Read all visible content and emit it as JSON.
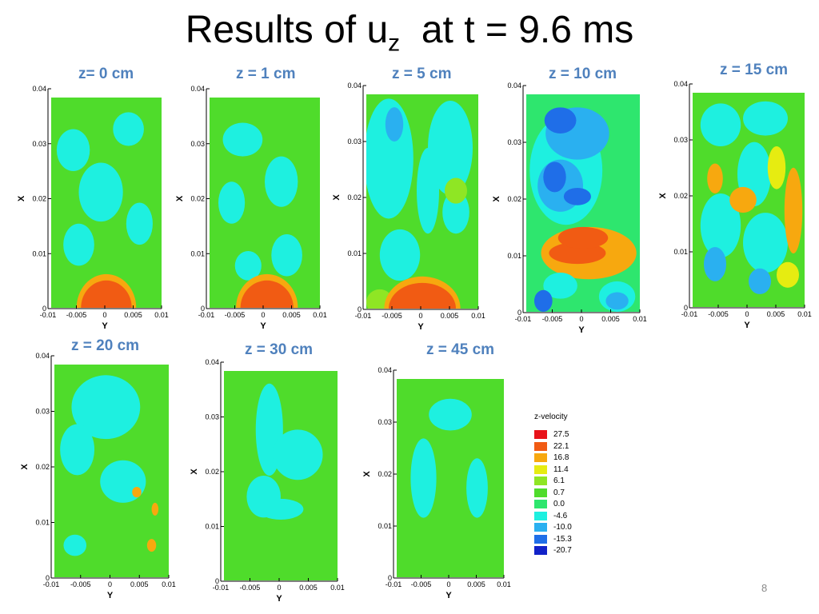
{
  "slide": {
    "title_main": "Results of u",
    "title_sub": "z",
    "title_rest": "  at t = 9.6 ms",
    "page_number": "8"
  },
  "axes": {
    "xlabel": "Y",
    "ylabel": "X",
    "xticks": [
      "-0.01",
      "-0.005",
      "0",
      "0.005",
      "0.01"
    ],
    "yticks": [
      "0",
      "0.01",
      "0.02",
      "0.03",
      "0.04"
    ]
  },
  "legend": {
    "title": "z-velocity",
    "levels": [
      {
        "label": "27.5",
        "color": "#e8131a"
      },
      {
        "label": "22.1",
        "color": "#f15b13"
      },
      {
        "label": "16.8",
        "color": "#f7a80f"
      },
      {
        "label": "11.4",
        "color": "#e6ec11"
      },
      {
        "label": "6.1",
        "color": "#8fe624"
      },
      {
        "label": "0.7",
        "color": "#4fdc2b"
      },
      {
        "label": "0.0",
        "color": "#2ee66e"
      },
      {
        "label": "-4.6",
        "color": "#1ef0e0"
      },
      {
        "label": "-10.0",
        "color": "#2ab0f0"
      },
      {
        "label": "-15.3",
        "color": "#1f6ee8"
      },
      {
        "label": "-20.7",
        "color": "#1222c8"
      }
    ]
  },
  "chart_data": [
    {
      "type": "heatmap",
      "title": "z= 0 cm",
      "xlabel": "Y",
      "ylabel": "X",
      "xlim": [
        -0.01,
        0.01
      ],
      "ylim": [
        0,
        0.04
      ]
    },
    {
      "type": "heatmap",
      "title": "z = 1 cm",
      "xlabel": "Y",
      "ylabel": "X",
      "xlim": [
        -0.01,
        0.01
      ],
      "ylim": [
        0,
        0.04
      ]
    },
    {
      "type": "heatmap",
      "title": "z = 5 cm",
      "xlabel": "Y",
      "ylabel": "X",
      "xlim": [
        -0.01,
        0.01
      ],
      "ylim": [
        0,
        0.04
      ]
    },
    {
      "type": "heatmap",
      "title": "z = 10 cm",
      "xlabel": "Y",
      "ylabel": "X",
      "xlim": [
        -0.01,
        0.01
      ],
      "ylim": [
        0,
        0.04
      ]
    },
    {
      "type": "heatmap",
      "title": "z = 15 cm",
      "xlabel": "Y",
      "ylabel": "X",
      "xlim": [
        -0.01,
        0.01
      ],
      "ylim": [
        0,
        0.04
      ]
    },
    {
      "type": "heatmap",
      "title": "z = 20 cm",
      "xlabel": "Y",
      "ylabel": "X",
      "xlim": [
        -0.01,
        0.01
      ],
      "ylim": [
        0,
        0.04
      ]
    },
    {
      "type": "heatmap",
      "title": "z = 30 cm",
      "xlabel": "Y",
      "ylabel": "X",
      "xlim": [
        -0.01,
        0.01
      ],
      "ylim": [
        0,
        0.04
      ]
    },
    {
      "type": "heatmap",
      "title": "z = 45 cm",
      "xlabel": "Y",
      "ylabel": "X",
      "xlim": [
        -0.01,
        0.01
      ],
      "ylim": [
        0,
        0.04
      ]
    }
  ]
}
